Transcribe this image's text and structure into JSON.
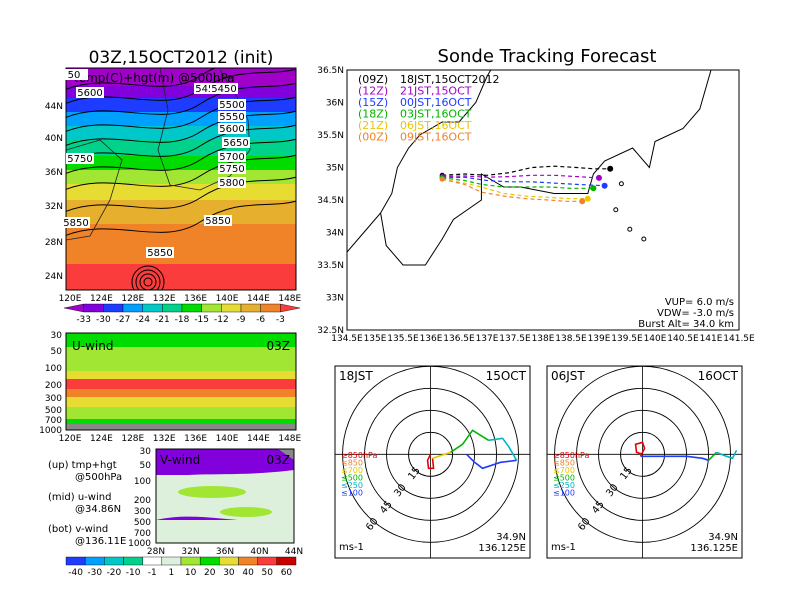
{
  "left_panel": {
    "title": "03Z,15OCT2012 (init)",
    "map_label": "temp(C)+hgt(m) @500hPa",
    "lon_ticks": [
      "120E",
      "124E",
      "128E",
      "132E",
      "136E",
      "140E",
      "144E",
      "148E"
    ],
    "lat_ticks": [
      "44N",
      "40N",
      "36N",
      "32N",
      "28N",
      "24N"
    ],
    "contour_labels": [
      "5450",
      "5500",
      "5550",
      "5600",
      "5650",
      "5700",
      "5750",
      "5800",
      "5850",
      "5600",
      "5750",
      "5850",
      "5850",
      "5450",
      "50"
    ],
    "colorbar_temp": [
      "-33",
      "-30",
      "-27",
      "-24",
      "-21",
      "-18",
      "-15",
      "-12",
      "-9",
      "-6",
      "-3"
    ],
    "u_panel": {
      "label": "U-wind",
      "time": "03Z",
      "p_ticks": [
        "30",
        "50",
        "100",
        "200",
        "300",
        "500",
        "700",
        "1000"
      ],
      "lon_ticks": [
        "120E",
        "124E",
        "128E",
        "132E",
        "136E",
        "140E",
        "144E",
        "148E"
      ]
    },
    "v_panel": {
      "label": "V-wind",
      "time": "03Z",
      "p_ticks": [
        "30",
        "50",
        "100",
        "200",
        "300",
        "500",
        "700",
        "1000"
      ],
      "lat_ticks": [
        "28N",
        "32N",
        "36N",
        "40N",
        "44N"
      ]
    },
    "legend": {
      "up": "(up) tmp+hgt",
      "up2": "@500hPa",
      "mid": "(mid) u-wind",
      "mid2": "@34.86N",
      "bot": "(bot) v-wind",
      "bot2": "@136.11E"
    },
    "colorbar_wind": [
      "-40",
      "-30",
      "-20",
      "-10",
      "-1",
      "1",
      "10",
      "20",
      "30",
      "40",
      "50",
      "60"
    ]
  },
  "colors": {
    "temp_scale": [
      "#a000c8",
      "#8200dc",
      "#1e3cff",
      "#00a0ff",
      "#00c8c8",
      "#00d28c",
      "#00dc00",
      "#a0e632",
      "#e6dc32",
      "#e6af2d",
      "#f08228",
      "#fa3c3c"
    ],
    "wind_scale": [
      "#1e3cff",
      "#00a0ff",
      "#00c8c8",
      "#00d28c",
      "#ffffff",
      "#dcf0dc",
      "#a0e632",
      "#00dc00",
      "#e6dc32",
      "#f08228",
      "#fa3c3c",
      "#c80000"
    ]
  },
  "tracking": {
    "title": "Sonde Tracking Forecast",
    "lat_ticks": [
      "36.5N",
      "36N",
      "35.5N",
      "35N",
      "34.5N",
      "34N",
      "33.5N",
      "33N",
      "32.5N"
    ],
    "lon_ticks": [
      "134.5E",
      "135E",
      "135.5E",
      "136E",
      "136.5E",
      "137E",
      "137.5E",
      "138E",
      "138.5E",
      "139E",
      "139.5E",
      "140E",
      "140.5E",
      "141E",
      "141.5E"
    ],
    "launches": [
      {
        "code": "(09Z)",
        "label": "18JST,15OCT2012",
        "color": "#000000"
      },
      {
        "code": "(12Z)",
        "label": "21JST,15OCT",
        "color": "#a000c8"
      },
      {
        "code": "(15Z)",
        "label": "00JST,16OCT",
        "color": "#1e3cff"
      },
      {
        "code": "(18Z)",
        "label": "03JST,16OCT",
        "color": "#00b400"
      },
      {
        "code": "(21Z)",
        "label": "06JST,16OCT",
        "color": "#e6c800"
      },
      {
        "code": "(00Z)",
        "label": "09JST,16OCT",
        "color": "#f08228"
      }
    ],
    "vup": "VUP= 6.0 m/s",
    "vdw": "VDW= -3.0 m/s",
    "burst": "Burst Alt= 34.0 km"
  },
  "polar_left": {
    "time": "18JST",
    "date": "15OCT",
    "ring_labels": [
      "15",
      "30",
      "45",
      "60"
    ],
    "levels": [
      "≥850hPa",
      "≤850",
      "≤700",
      "≤500",
      "≤250",
      "≤100"
    ],
    "unit": "ms-1",
    "lat": "34.9N",
    "lon": "136.125E"
  },
  "polar_right": {
    "time": "06JST",
    "date": "16OCT",
    "ring_labels": [
      "15",
      "30",
      "45",
      "60"
    ],
    "levels": [
      "≥850hPa",
      "≤850",
      "≤700",
      "≤500",
      "≤250",
      "≤100"
    ],
    "unit": "ms-1",
    "lat": "34.9N",
    "lon": "136.125E"
  },
  "level_colors": [
    "#e60000",
    "#f08228",
    "#e6c800",
    "#00b400",
    "#00b4c8",
    "#1e3cff"
  ],
  "chart_data": [
    {
      "type": "heatmap",
      "title": "03Z,15OCT2012 (init)",
      "subtitle": "temp(C)+hgt(m) @500hPa",
      "x_range": [
        "120E",
        "150E"
      ],
      "y_range": [
        "22N",
        "46N"
      ],
      "contour_values_m": [
        5450,
        5500,
        5550,
        5600,
        5650,
        5700,
        5750,
        5800,
        5850
      ],
      "colorbar": [
        -33,
        -30,
        -27,
        -24,
        -21,
        -18,
        -15,
        -12,
        -9,
        -6,
        -3
      ]
    },
    {
      "type": "line",
      "title": "Sonde Tracking Forecast",
      "xlim": [
        134.5,
        141.5
      ],
      "ylim": [
        32.5,
        36.5
      ],
      "series": [
        {
          "name": "(09Z) 18JST,15OCT2012",
          "x": [
            136.2,
            136.6,
            137.0,
            137.4,
            137.8,
            138.2,
            138.6,
            138.9,
            139.2
          ],
          "y": [
            34.88,
            34.9,
            34.88,
            34.92,
            35.0,
            35.02,
            35.0,
            34.98,
            34.98
          ]
        },
        {
          "name": "(12Z) 21JST,15OCT",
          "x": [
            136.2,
            136.6,
            137.0,
            137.4,
            137.8,
            138.2,
            138.6,
            139.0
          ],
          "y": [
            34.86,
            34.87,
            34.85,
            34.86,
            34.88,
            34.88,
            34.86,
            34.84
          ]
        },
        {
          "name": "(15Z) 00JST,16OCT",
          "x": [
            136.2,
            136.6,
            137.0,
            137.4,
            137.8,
            138.2,
            138.6,
            139.1
          ],
          "y": [
            34.84,
            34.85,
            34.8,
            34.78,
            34.78,
            34.76,
            34.74,
            34.72
          ]
        },
        {
          "name": "(18Z) 03JST,16OCT",
          "x": [
            136.2,
            136.6,
            136.9,
            137.3,
            137.7,
            138.1,
            138.5,
            138.9
          ],
          "y": [
            34.84,
            34.8,
            34.74,
            34.7,
            34.7,
            34.7,
            34.68,
            34.68
          ]
        },
        {
          "name": "(21Z) 06JST,16OCT",
          "x": [
            136.2,
            136.6,
            136.9,
            137.3,
            137.7,
            138.1,
            138.5,
            138.8
          ],
          "y": [
            34.82,
            34.76,
            34.7,
            34.6,
            34.56,
            34.54,
            34.52,
            34.52
          ]
        },
        {
          "name": "(00Z) 09JST,16OCT",
          "x": [
            136.2,
            136.6,
            136.9,
            137.3,
            137.7,
            138.1,
            138.4,
            138.7
          ],
          "y": [
            34.82,
            34.74,
            34.62,
            34.56,
            34.52,
            34.5,
            34.48,
            34.48
          ]
        }
      ]
    }
  ]
}
